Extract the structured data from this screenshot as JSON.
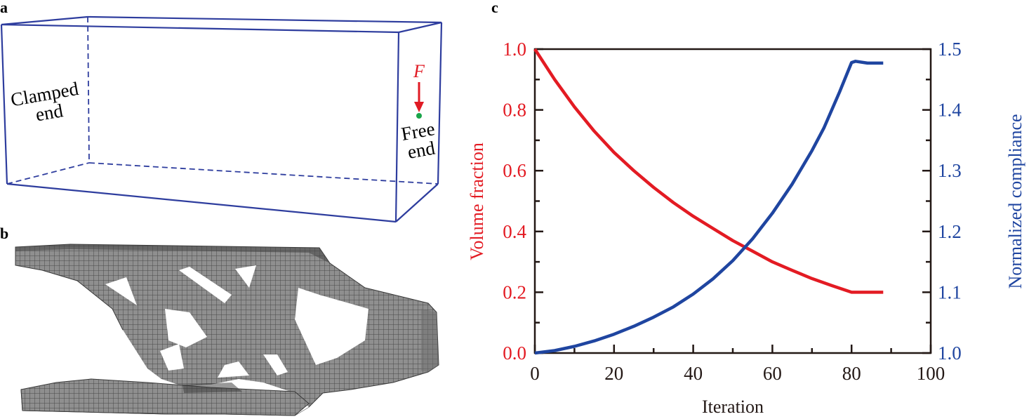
{
  "panels": {
    "a": {
      "label": "a",
      "clamped_line1": "Clamped",
      "clamped_line2": "end",
      "free_line1": "Free",
      "free_line2": "end",
      "force": "F"
    },
    "b": {
      "label": "b"
    },
    "c": {
      "label": "c"
    }
  },
  "colors": {
    "box": "#2e3d9e",
    "force": "#e01b24",
    "load_point": "#1aa54a",
    "volume": "#e31b23",
    "compliance": "#1f45a0",
    "voxel": "#8c8c8c"
  },
  "chart_data": {
    "type": "line",
    "xlabel": "Iteration",
    "ylabel_left": "Volume fraction",
    "ylabel_right": "Normalized compliance",
    "xlim": [
      0,
      100
    ],
    "ylim_left": [
      0,
      1.0
    ],
    "ylim_right": [
      1.0,
      1.5
    ],
    "x_ticks": [
      "0",
      "20",
      "40",
      "60",
      "80",
      "100"
    ],
    "y_left_ticks": [
      "0.0",
      "0.2",
      "0.4",
      "0.6",
      "0.8",
      "1.0"
    ],
    "y_right_ticks": [
      "1.0",
      "1.1",
      "1.2",
      "1.3",
      "1.4",
      "1.5"
    ],
    "grid": false,
    "series": [
      {
        "axis": "left",
        "x": [
          0,
          5,
          10,
          15,
          20,
          25,
          30,
          35,
          40,
          45,
          50,
          55,
          60,
          65,
          70,
          75,
          80,
          84,
          88
        ],
        "values": [
          1.0,
          0.9,
          0.81,
          0.73,
          0.66,
          0.6,
          0.545,
          0.495,
          0.45,
          0.41,
          0.37,
          0.335,
          0.3,
          0.272,
          0.245,
          0.222,
          0.2,
          0.2,
          0.2
        ]
      },
      {
        "axis": "right",
        "x": [
          0,
          5,
          10,
          15,
          20,
          25,
          30,
          35,
          40,
          45,
          50,
          55,
          60,
          65,
          70,
          73,
          75,
          77,
          80,
          81,
          84,
          88
        ],
        "values": [
          1.0,
          1.004,
          1.011,
          1.02,
          1.031,
          1.044,
          1.059,
          1.076,
          1.097,
          1.122,
          1.152,
          1.188,
          1.23,
          1.278,
          1.333,
          1.37,
          1.4,
          1.43,
          1.478,
          1.48,
          1.477,
          1.477
        ]
      }
    ]
  }
}
